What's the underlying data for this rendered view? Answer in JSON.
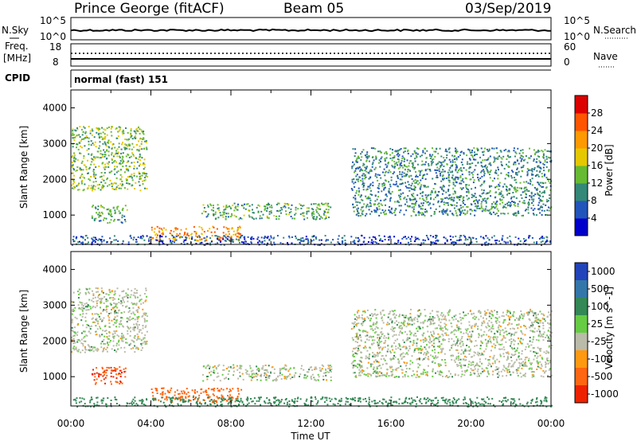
{
  "header": {
    "station": "Prince George (fitACF)",
    "beam": "Beam 05",
    "date": "03/Sep/2019"
  },
  "noise_panel": {
    "left_label": "N.Sky",
    "right_label": "N.Search",
    "left_ticks": [
      "10^5",
      "10^0"
    ],
    "right_ticks": [
      "10^5",
      "10^0"
    ]
  },
  "freq_panel": {
    "left_label_line1": "Freq.",
    "left_label_line2": "[MHz]",
    "right_label": "Nave",
    "left_ticks": [
      "18",
      "8"
    ],
    "right_ticks": [
      "60",
      "0"
    ]
  },
  "cpid": {
    "label": "CPID",
    "mode_text": "normal (fast) 151"
  },
  "x_axis": {
    "label": "Time UT",
    "ticks": [
      "00:00",
      "04:00",
      "08:00",
      "12:00",
      "16:00",
      "20:00",
      "00:00"
    ]
  },
  "colors": {
    "power_scale": [
      "#0000cc",
      "#2255bb",
      "#338877",
      "#66bb33",
      "#e6c800",
      "#ff9900",
      "#ff5500",
      "#dd0000"
    ],
    "velocity_scale": [
      "#2244bb",
      "#3377aa",
      "#338855",
      "#66cc44",
      "#bbbbaa",
      "#ff9911",
      "#ff6611",
      "#ee2200"
    ]
  },
  "chart_data": [
    {
      "type": "heatmap",
      "title": "",
      "ylabel": "Slant Range [km]",
      "xlabel": "",
      "ylim": [
        180,
        4500
      ],
      "yticks": [
        "1000",
        "2000",
        "3000",
        "4000"
      ],
      "colorbar": {
        "label": "Power [dB]",
        "ticks": [
          "4",
          "8",
          "12",
          "16",
          "20",
          "24",
          "28"
        ],
        "range": [
          0,
          32
        ]
      },
      "features": [
        {
          "t_start": 0.0,
          "t_end": 3.8,
          "range_start": 1700,
          "range_end": 3500,
          "value": 14
        },
        {
          "t_start": 1.0,
          "t_end": 2.8,
          "range_start": 800,
          "range_end": 1300,
          "value": 12
        },
        {
          "t_start": 4.0,
          "t_end": 8.5,
          "range_start": 300,
          "range_end": 700,
          "value": 22
        },
        {
          "t_start": 6.5,
          "t_end": 13.0,
          "range_start": 900,
          "range_end": 1350,
          "value": 12
        },
        {
          "t_start": 14.0,
          "t_end": 24.0,
          "range_start": 1000,
          "range_end": 2900,
          "value": 10
        },
        {
          "t_start": 0.0,
          "t_end": 24.0,
          "range_start": 180,
          "range_end": 450,
          "value": 6
        }
      ]
    },
    {
      "type": "heatmap",
      "title": "",
      "ylabel": "Slant Range [km]",
      "xlabel": "Time UT",
      "ylim": [
        180,
        4500
      ],
      "yticks": [
        "1000",
        "2000",
        "3000",
        "4000"
      ],
      "colorbar": {
        "label": "Velocity [m s^-1]",
        "ticks": [
          "1000",
          "500",
          "100",
          "25",
          "-25",
          "-100",
          "-500",
          "-1000"
        ]
      },
      "features": [
        {
          "t_start": 0.0,
          "t_end": 3.8,
          "range_start": 1700,
          "range_end": 3500,
          "value": 0
        },
        {
          "t_start": 1.0,
          "t_end": 2.8,
          "range_start": 800,
          "range_end": 1300,
          "value": -500
        },
        {
          "t_start": 4.0,
          "t_end": 8.5,
          "range_start": 300,
          "range_end": 700,
          "value": -250
        },
        {
          "t_start": 6.5,
          "t_end": 13.0,
          "range_start": 900,
          "range_end": 1350,
          "value": 0
        },
        {
          "t_start": 14.0,
          "t_end": 24.0,
          "range_start": 1000,
          "range_end": 2900,
          "value": 0
        },
        {
          "t_start": 0.0,
          "t_end": 24.0,
          "range_start": 180,
          "range_end": 450,
          "value": 60
        }
      ]
    }
  ]
}
